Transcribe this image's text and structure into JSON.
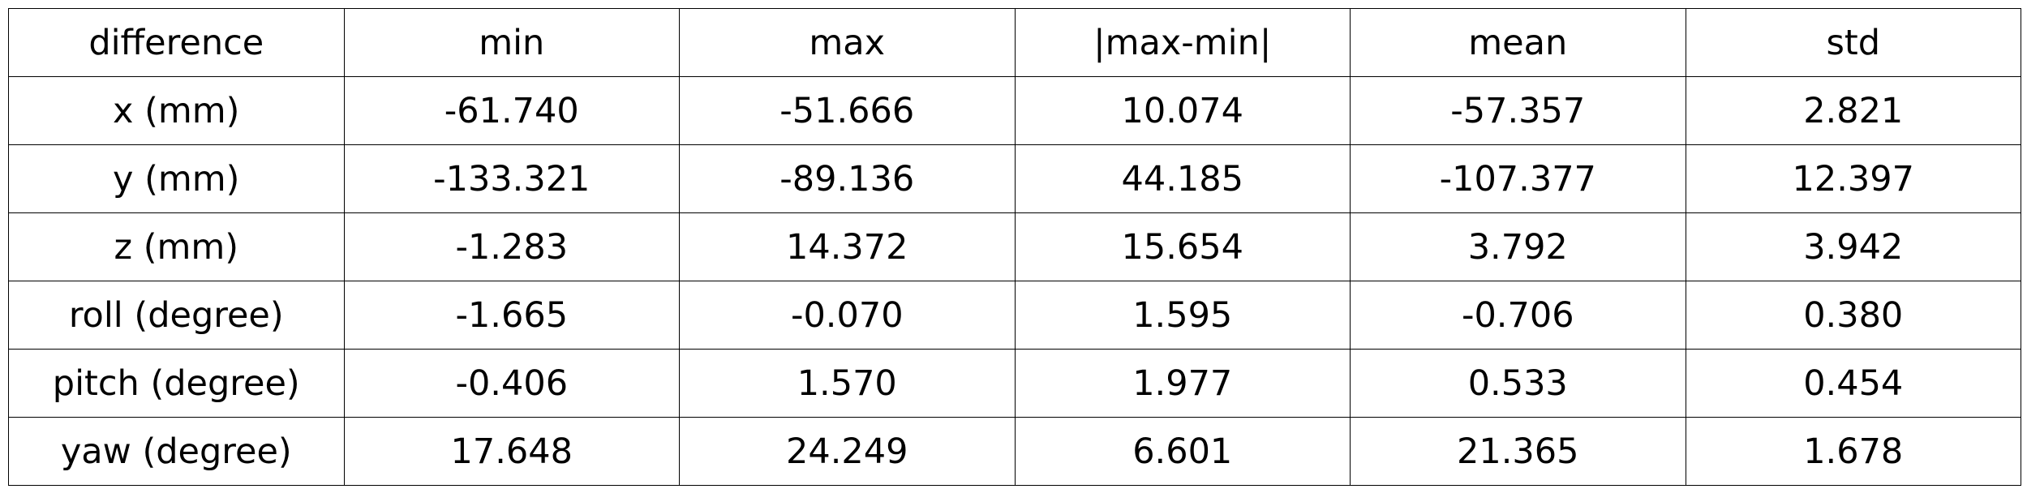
{
  "chart_data": {
    "type": "table",
    "columns": [
      "difference",
      "min",
      "max",
      "|max-min|",
      "mean",
      "std"
    ],
    "rows": [
      [
        "x (mm)",
        "-61.740",
        "-51.666",
        "10.074",
        "-57.357",
        "2.821"
      ],
      [
        "y (mm)",
        "-133.321",
        "-89.136",
        "44.185",
        "-107.377",
        "12.397"
      ],
      [
        "z (mm)",
        "-1.283",
        "14.372",
        "15.654",
        "3.792",
        "3.942"
      ],
      [
        "roll (degree)",
        "-1.665",
        "-0.070",
        "1.595",
        "-0.706",
        "0.380"
      ],
      [
        "pitch (degree)",
        "-0.406",
        "1.570",
        "1.977",
        "0.533",
        "0.454"
      ],
      [
        "yaw (degree)",
        "17.648",
        "24.249",
        "6.601",
        "21.365",
        "1.678"
      ]
    ]
  }
}
